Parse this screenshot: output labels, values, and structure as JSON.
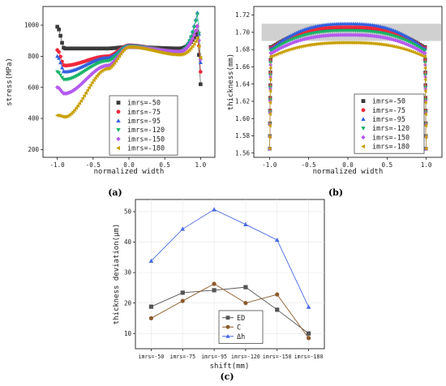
{
  "colors": {
    "-50": "#3a3a3a",
    "-75": "#f0283c",
    "-95": "#2f5fe0",
    "-120": "#18b468",
    "-150": "#b45af0",
    "-180": "#c8a000",
    "ED": "#555555",
    "C": "#8b5a2b",
    "dh": "#4a6ae0"
  },
  "chart_data": [
    {
      "panel": "(a)",
      "type": "scatter",
      "xlabel": "normalized width",
      "ylabel": "stress(MPa)",
      "xlim": [
        -1.2,
        1.2
      ],
      "ylim": [
        150,
        1120
      ],
      "xticks": [
        -1.0,
        -0.5,
        0.0,
        0.5,
        1.0
      ],
      "xtick_labels": [
        "-1.0",
        "-0.5",
        "0.0",
        "0.5",
        "1.0"
      ],
      "yticks": [
        200,
        400,
        600,
        800,
        1000
      ],
      "ytick_labels": [
        "200",
        "400",
        "600",
        "800",
        "1000"
      ],
      "legend_position": "bottom-right",
      "series": [
        {
          "name": "imrs=-50",
          "key": "-50",
          "marker": "square",
          "profile": {
            "edge": 990,
            "dip": 850,
            "mid": 850,
            "center": 860,
            "rise": 850,
            "redge": 960,
            "end": 620
          }
        },
        {
          "name": "imrs=-75",
          "key": "-75",
          "marker": "circle",
          "profile": {
            "edge": 840,
            "dip": 740,
            "mid": 800,
            "center": 870,
            "rise": 830,
            "redge": 1000,
            "end": 700
          }
        },
        {
          "name": "imrs=-95",
          "key": "-95",
          "marker": "triangle-up",
          "profile": {
            "edge": 800,
            "dip": 700,
            "mid": 790,
            "center": 870,
            "rise": 830,
            "redge": 1090,
            "end": 760
          }
        },
        {
          "name": "imrs=-120",
          "key": "-120",
          "marker": "triangle-down",
          "profile": {
            "edge": 700,
            "dip": 650,
            "mid": 770,
            "center": 865,
            "rise": 830,
            "redge": 1080,
            "end": 780
          }
        },
        {
          "name": "imrs=-150",
          "key": "-150",
          "marker": "diamond",
          "profile": {
            "edge": 600,
            "dip": 560,
            "mid": 740,
            "center": 860,
            "rise": 830,
            "redge": 1000,
            "end": 780
          }
        },
        {
          "name": "imrs=-180",
          "key": "-180",
          "marker": "triangle-left",
          "profile": {
            "edge": 420,
            "dip": 410,
            "mid": 720,
            "center": 860,
            "rise": 810,
            "redge": 920,
            "end": 790
          }
        }
      ]
    },
    {
      "panel": "(b)",
      "type": "scatter",
      "xlabel": "normalized width",
      "ylabel": "thickness(mm)",
      "xlim": [
        -1.2,
        1.2
      ],
      "ylim": [
        1.555,
        1.73
      ],
      "xticks": [
        -1.0,
        -0.5,
        0.0,
        0.5,
        1.0
      ],
      "xtick_labels": [
        "-1.0",
        "-0.5",
        "0.0",
        "0.5",
        "1.0"
      ],
      "yticks": [
        1.56,
        1.58,
        1.6,
        1.62,
        1.64,
        1.66,
        1.68,
        1.7,
        1.72
      ],
      "ytick_labels": [
        "1.56",
        "1.58",
        "1.60",
        "1.62",
        "1.64",
        "1.66",
        "1.68",
        "1.70",
        "1.72"
      ],
      "shaded_band": [
        1.69,
        1.71
      ],
      "legend_position": "bottom-right",
      "series": [
        {
          "name": "imrs=-50",
          "key": "-50",
          "marker": "square",
          "edge": 1.683,
          "center": 1.705
        },
        {
          "name": "imrs=-75",
          "key": "-75",
          "marker": "circle",
          "edge": 1.682,
          "center": 1.706
        },
        {
          "name": "imrs=-95",
          "key": "-95",
          "marker": "triangle-up",
          "edge": 1.681,
          "center": 1.71
        },
        {
          "name": "imrs=-120",
          "key": "-120",
          "marker": "triangle-down",
          "edge": 1.679,
          "center": 1.702
        },
        {
          "name": "imrs=-150",
          "key": "-150",
          "marker": "diamond",
          "edge": 1.676,
          "center": 1.697
        },
        {
          "name": "imrs=-180",
          "key": "-180",
          "marker": "triangle-left",
          "edge": 1.672,
          "center": 1.688
        }
      ]
    },
    {
      "panel": "(c)",
      "type": "line",
      "xlabel": "shift(mm)",
      "ylabel": "thickness deviation(μm)",
      "categories": [
        "imrs=-50",
        "imrs=-75",
        "imrs=-95",
        "imrs=-120",
        "imrs=-150",
        "imrs=-180"
      ],
      "ylim": [
        5,
        54
      ],
      "yticks": [
        10,
        20,
        30,
        40,
        50
      ],
      "ytick_labels": [
        "10",
        "20",
        "30",
        "40",
        "50"
      ],
      "legend_position": "bottom-left",
      "series": [
        {
          "name": "ED",
          "key": "ED",
          "marker": "square",
          "values": [
            18.8,
            23.4,
            24.2,
            25.2,
            17.8,
            10.0
          ]
        },
        {
          "name": "C",
          "key": "C",
          "marker": "circle",
          "values": [
            15.0,
            20.7,
            26.3,
            20.0,
            22.8,
            8.5
          ]
        },
        {
          "name": "Δh",
          "key": "dh",
          "marker": "triangle-up",
          "values": [
            33.8,
            44.3,
            50.7,
            45.8,
            40.7,
            18.7
          ]
        }
      ]
    }
  ]
}
